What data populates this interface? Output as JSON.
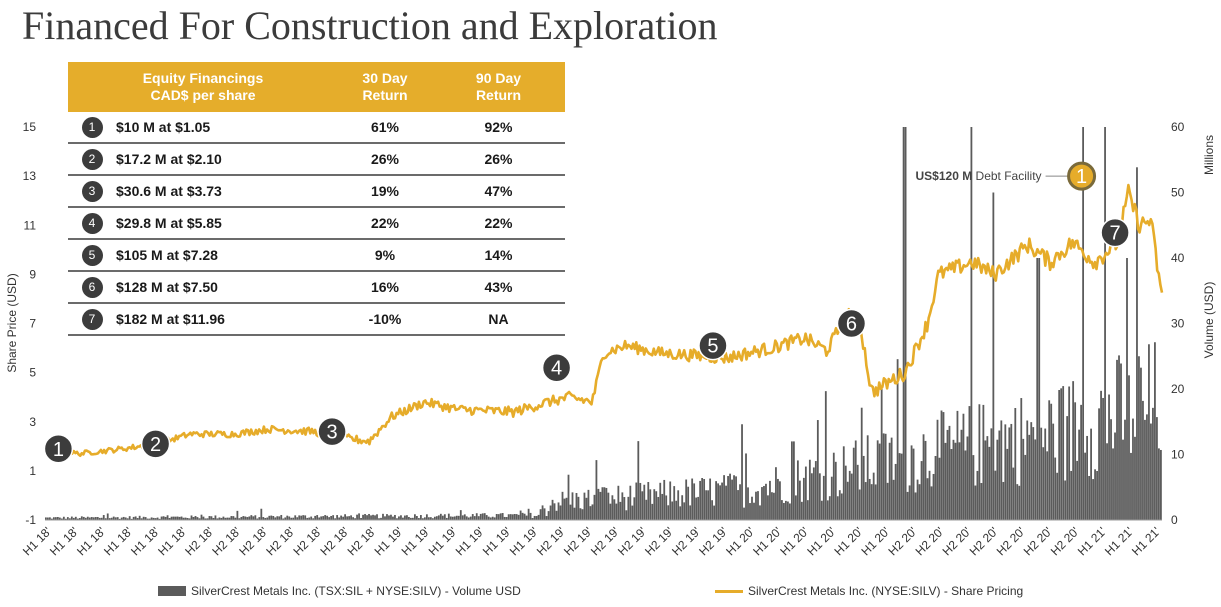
{
  "title": "Financed For Construction and Exploration",
  "table": {
    "headers": [
      "Equity Financings\nCAD$ per share",
      "30 Day\nReturn",
      "90 Day\nReturn"
    ],
    "rows": [
      {
        "n": "1",
        "financing": "$10 M at $1.05",
        "r30": "61%",
        "r90": "92%"
      },
      {
        "n": "2",
        "financing": "$17.2 M at $2.10",
        "r30": "26%",
        "r90": "26%"
      },
      {
        "n": "3",
        "financing": "$30.6 M at $3.73",
        "r30": "19%",
        "r90": "47%"
      },
      {
        "n": "4",
        "financing": "$29.8 M at $5.85",
        "r30": "22%",
        "r90": "22%"
      },
      {
        "n": "5",
        "financing": "$105 M at $7.28",
        "r30": "9%",
        "r90": "14%"
      },
      {
        "n": "6",
        "financing": "$128 M at $7.50",
        "r30": "16%",
        "r90": "43%"
      },
      {
        "n": "7",
        "financing": "$182 M at $11.96",
        "r30": "-10%",
        "r90": "NA"
      }
    ]
  },
  "debt_annotation": {
    "bold": "US$120 M",
    "text": "Debt Facility",
    "marker": "1"
  },
  "colors": {
    "price_line": "#e6ac2a",
    "volume_bars": "#5b5b5b",
    "table_header": "#e5ad2b",
    "badge": "#3c3c3c"
  },
  "legend": {
    "volume": "SilverCrest Metals Inc. (TSX:SIL + NYSE:SILV) - Volume USD",
    "price": "SilverCrest Metals Inc. (NYSE:SILV) - Share Pricing"
  },
  "chart_data": {
    "type": "line+bar",
    "left_axis": {
      "label": "Share Price (USD)",
      "ylim": [
        -1,
        15
      ],
      "ticks": [
        -1,
        1,
        3,
        5,
        7,
        9,
        11,
        13,
        15
      ]
    },
    "right_axis": {
      "label": "Volume (USD)",
      "unit_label": "Millions",
      "ylim": [
        0,
        60
      ],
      "ticks": [
        0,
        10,
        20,
        30,
        40,
        50,
        60
      ]
    },
    "x_tick_labels": [
      "H1 18'",
      "H1 18'",
      "H1 18'",
      "H1 18'",
      "H1 18'",
      "H1 18'",
      "H2 18'",
      "H2 18'",
      "H2 18'",
      "H2 18'",
      "H2 18'",
      "H2 18'",
      "H2 18'",
      "H1 19'",
      "H1 19'",
      "H1 19'",
      "H1 19'",
      "H1 19'",
      "H1 19'",
      "H2 19'",
      "H2 19'",
      "H2 19'",
      "H2 19'",
      "H2 19'",
      "H2 19'",
      "H2 19'",
      "H1 20'",
      "H1 20'",
      "H1 20'",
      "H1 20'",
      "H1 20'",
      "H1 20'",
      "H2 20'",
      "H2 20'",
      "H2 20'",
      "H2 20'",
      "H2 20'",
      "H2 20'",
      "H2 20'",
      "H1 21'",
      "H1 21'",
      "H1 21'"
    ],
    "price_keypoints": [
      [
        0,
        1.9
      ],
      [
        0.03,
        1.7
      ],
      [
        0.07,
        1.9
      ],
      [
        0.1,
        2.1
      ],
      [
        0.13,
        2.5
      ],
      [
        0.17,
        2.5
      ],
      [
        0.2,
        2.7
      ],
      [
        0.24,
        2.6
      ],
      [
        0.26,
        2.4
      ],
      [
        0.29,
        2.2
      ],
      [
        0.31,
        3.2
      ],
      [
        0.34,
        3.8
      ],
      [
        0.37,
        3.5
      ],
      [
        0.42,
        3.4
      ],
      [
        0.45,
        3.8
      ],
      [
        0.47,
        4.0
      ],
      [
        0.49,
        3.8
      ],
      [
        0.5,
        5.8
      ],
      [
        0.52,
        6.1
      ],
      [
        0.55,
        5.8
      ],
      [
        0.58,
        5.7
      ],
      [
        0.61,
        5.6
      ],
      [
        0.65,
        6.0
      ],
      [
        0.68,
        6.4
      ],
      [
        0.7,
        5.9
      ],
      [
        0.72,
        7.5
      ],
      [
        0.73,
        6.9
      ],
      [
        0.74,
        4.2
      ],
      [
        0.77,
        5.0
      ],
      [
        0.79,
        7.0
      ],
      [
        0.8,
        9.0
      ],
      [
        0.83,
        9.5
      ],
      [
        0.85,
        9.0
      ],
      [
        0.88,
        10.2
      ],
      [
        0.9,
        9.5
      ],
      [
        0.92,
        10.3
      ],
      [
        0.94,
        9.5
      ],
      [
        0.96,
        10.3
      ],
      [
        0.97,
        12.3
      ],
      [
        0.98,
        11.0
      ],
      [
        0.99,
        11.2
      ],
      [
        1.0,
        8.0
      ]
    ],
    "volume_spikes": [
      [
        0.5,
        5
      ],
      [
        0.67,
        12
      ],
      [
        0.69,
        9
      ],
      [
        0.75,
        20
      ],
      [
        0.77,
        60
      ],
      [
        0.83,
        60
      ],
      [
        0.85,
        50
      ],
      [
        0.89,
        40
      ],
      [
        0.93,
        60
      ],
      [
        0.95,
        60
      ],
      [
        0.97,
        40
      ],
      [
        0.98,
        25
      ]
    ],
    "volume_max": 60,
    "price_markers": [
      {
        "n": "1",
        "x_frac": 0.012,
        "price": 1.9
      },
      {
        "n": "2",
        "x_frac": 0.099,
        "price": 2.1
      },
      {
        "n": "3",
        "x_frac": 0.257,
        "price": 2.6
      },
      {
        "n": "4",
        "x_frac": 0.458,
        "price": 5.2
      },
      {
        "n": "5",
        "x_frac": 0.598,
        "price": 6.1
      },
      {
        "n": "6",
        "x_frac": 0.722,
        "price": 7.0
      },
      {
        "n": "7",
        "x_frac": 0.958,
        "price": 10.7
      }
    ],
    "debt_marker": {
      "x_frac": 0.928,
      "price": 13.0
    }
  }
}
